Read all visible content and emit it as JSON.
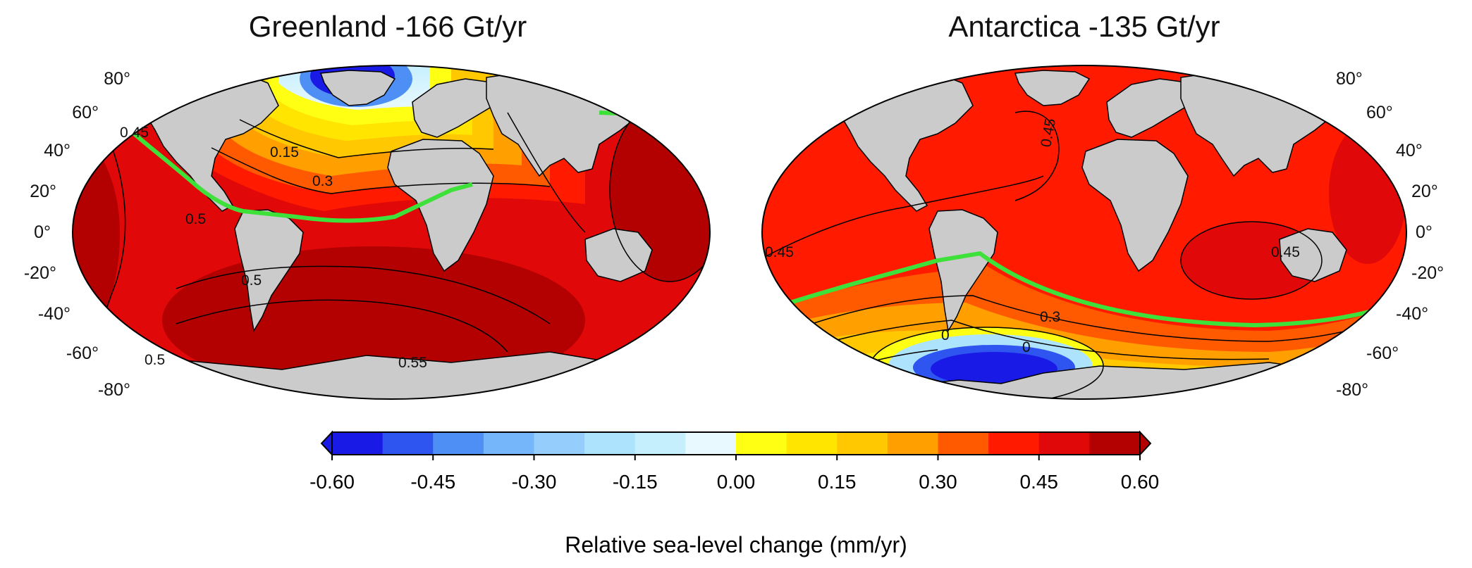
{
  "panels": [
    {
      "title": "Greenland -166 Gt/yr",
      "lat_labels": [
        "80°",
        "60°",
        "40°",
        "20°",
        "0°",
        "-20°",
        "-40°",
        "-60°",
        "-80°"
      ],
      "contour_labels": [
        "0.15",
        "0.3",
        "0.45",
        "0.5",
        "0.5",
        "0.5",
        "0.55"
      ]
    },
    {
      "title": "Antarctica -135 Gt/yr",
      "lat_labels": [
        "80°",
        "60°",
        "40°",
        "20°",
        "0°",
        "-20°",
        "-40°",
        "-60°",
        "-80°"
      ],
      "contour_labels": [
        "0.45",
        "0.45",
        "0.45",
        "0.3",
        "0",
        "0"
      ]
    }
  ],
  "colorbar": {
    "title": "Relative sea-level change (mm/yr)",
    "tick_labels": [
      "-0.60",
      "-0.45",
      "-0.30",
      "-0.15",
      "0.00",
      "0.15",
      "0.30",
      "0.45",
      "0.60"
    ],
    "range": [
      -0.6,
      0.6
    ],
    "step": 0.075,
    "colors": [
      "#1a1ae6",
      "#2e55f0",
      "#4d8ff5",
      "#75b5fa",
      "#95cdfc",
      "#aee3fd",
      "#c6effe",
      "#e8f9ff",
      "#ffff14",
      "#ffe500",
      "#ffc800",
      "#ffa000",
      "#ff5a00",
      "#ff1a00",
      "#e00808",
      "#b30000"
    ]
  },
  "colors": {
    "land": "#cbcbcb",
    "zero_line": "#3ee13a",
    "contour": "#000000"
  }
}
